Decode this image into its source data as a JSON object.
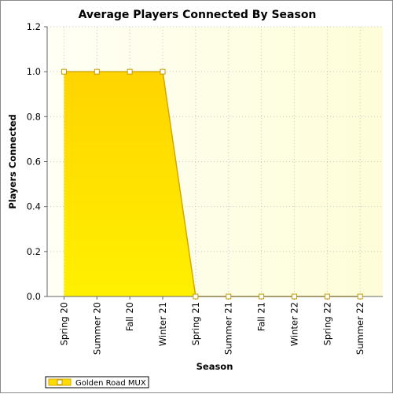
{
  "chart_data": {
    "type": "area",
    "title": "Average Players Connected By Season",
    "xlabel": "Season",
    "ylabel": "Players Connected",
    "categories": [
      "Spring 20",
      "Summer 20",
      "Fall 20",
      "Winter 21",
      "Spring 21",
      "Summer 21",
      "Fall 21",
      "Winter 22",
      "Spring 22",
      "Summer 22"
    ],
    "series": [
      {
        "name": "Golden Road MUX",
        "values": [
          1.0,
          1.0,
          1.0,
          1.0,
          0.0,
          0.0,
          0.0,
          0.0,
          0.0,
          0.0
        ]
      }
    ],
    "ylim": [
      0,
      1.2
    ],
    "yticks": [
      "0.0",
      "0.2",
      "0.4",
      "0.6",
      "0.8",
      "1.0",
      "1.2"
    ],
    "grid": true,
    "legend_position": "bottom-left",
    "colors": {
      "area_top": "#ffd400",
      "area_bottom": "#fff000",
      "line": "#d4a800",
      "marker_fill": "#ffffff",
      "background_light": "#fffff5",
      "background_tint": "#fefdd8"
    }
  }
}
